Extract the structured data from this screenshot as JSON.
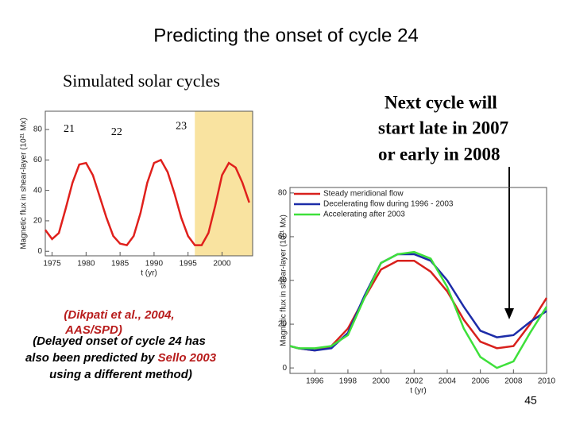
{
  "slide": {
    "title": "Predicting the onset of cycle 24",
    "subtitle": "Simulated solar cycles",
    "callout": [
      "Next cycle will",
      "start late in 2007",
      "or early in 2008"
    ],
    "citation": [
      "(Dikpati et al., 2004,",
      "AAS/SPD)"
    ],
    "note": [
      "(Delayed onset of cycle 24 has",
      "also been predicted by ",
      "Sello 2003",
      "using a different method)"
    ],
    "page_number": "45"
  },
  "chart_data": [
    {
      "type": "line",
      "y_label": "Magnetic flux in shear-layer (10²¹ Mx)",
      "x_label": "t (yr)",
      "annotations": [
        "21",
        "22",
        "23"
      ],
      "x": [
        1974,
        1975,
        1976,
        1977,
        1978,
        1979,
        1980,
        1981,
        1982,
        1983,
        1984,
        1985,
        1986,
        1987,
        1988,
        1989,
        1990,
        1991,
        1992,
        1993,
        1994,
        1995,
        1996,
        1997,
        1998,
        1999,
        2000,
        2001,
        2002,
        2003,
        2004
      ],
      "values": [
        14,
        8,
        12,
        28,
        45,
        57,
        58,
        50,
        36,
        22,
        10,
        5,
        4,
        10,
        25,
        45,
        58,
        60,
        52,
        38,
        22,
        10,
        4,
        4,
        12,
        30,
        50,
        58,
        55,
        45,
        32
      ],
      "color": "#e0201c",
      "shaded_span": [
        1996,
        2004.5
      ],
      "shade_color": "#f9e3a0",
      "xlim": [
        1974,
        2004.5
      ],
      "xticks": [
        1975,
        1980,
        1985,
        1990,
        1995,
        2000
      ],
      "ylim": [
        -3,
        92
      ],
      "yticks": [
        0,
        20,
        40,
        60,
        80
      ]
    },
    {
      "type": "line",
      "y_label": "Magnetic flux in shear-layer (10²¹ Mx)",
      "x_label": "t (yr)",
      "x": [
        1994.5,
        1995,
        1996,
        1997,
        1998,
        1999,
        2000,
        2001,
        2002,
        2003,
        2004,
        2005,
        2006,
        2007,
        2008,
        2009,
        2010
      ],
      "series": [
        {
          "name": "Steady meridional flow",
          "color": "#d8201c",
          "values": [
            10,
            9,
            8,
            10,
            18,
            32,
            45,
            49,
            49,
            44,
            35,
            22,
            12,
            9,
            10,
            20,
            32
          ]
        },
        {
          "name": "Decelerating flow during 1996 - 2003",
          "color": "#1c2ca8",
          "values": [
            10,
            9,
            8,
            9,
            16,
            33,
            48,
            52,
            52,
            49,
            40,
            28,
            17,
            14,
            15,
            21,
            26
          ]
        },
        {
          "name": "Accelerating after 2003",
          "color": "#3ee03a",
          "values": [
            10,
            9,
            9,
            10,
            15,
            32,
            48,
            52,
            53,
            50,
            37,
            18,
            5,
            0,
            3,
            16,
            28
          ]
        }
      ],
      "legend": "upper left",
      "xlim": [
        1994.5,
        2010
      ],
      "xticks": [
        1996,
        1998,
        2000,
        2002,
        2004,
        2006,
        2008,
        2010
      ],
      "ylim": [
        -2.5,
        82.5
      ],
      "yticks": [
        0,
        20,
        40,
        60,
        80
      ]
    }
  ]
}
